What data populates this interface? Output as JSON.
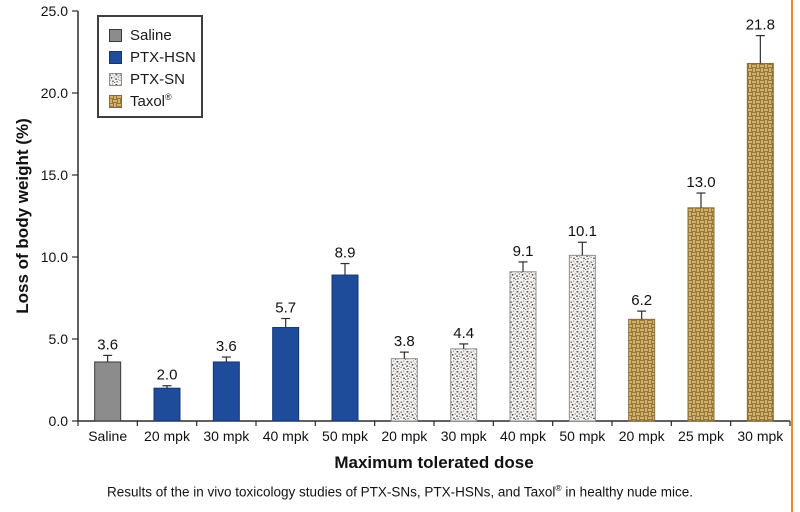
{
  "figure": {
    "background": "#FFFFFF",
    "accent_border_color": "#F18A1E",
    "axis_color": "#2B2B2B"
  },
  "chart_data": {
    "type": "bar",
    "title": "",
    "xlabel": "Maximum tolerated dose",
    "ylabel": "Loss of body weight (%)",
    "ylim": [
      0,
      25
    ],
    "grid": false,
    "legend_position": "top-left",
    "yticks": [
      {
        "value": 0,
        "label": "0.0"
      },
      {
        "value": 5,
        "label": "5.0"
      },
      {
        "value": 10,
        "label": "10.0"
      },
      {
        "value": 15,
        "label": "15.0"
      },
      {
        "value": 20,
        "label": "20.0"
      },
      {
        "value": 25,
        "label": "25.0"
      }
    ],
    "groups": {
      "Saline": {
        "fill": "#8C8C8C",
        "stroke": "#3A3A3A",
        "pattern": null
      },
      "PTX-HSN": {
        "fill": "#1F4B9B",
        "stroke": "#16366F",
        "pattern": null
      },
      "PTX-SN": {
        "fill": "#F3F2F0",
        "stroke": "#8F8F8F",
        "pattern": "pat-speckle"
      },
      "Taxol": {
        "fill": "#CBA661",
        "stroke": "#8A6C33",
        "pattern": "pat-weave"
      }
    },
    "bars": [
      {
        "category": "Saline",
        "group": "Saline",
        "value": 3.6,
        "label": "3.6",
        "error_plus": 0.4
      },
      {
        "category": "20 mpk",
        "group": "PTX-HSN",
        "value": 2.0,
        "label": "2.0",
        "error_plus": 0.15
      },
      {
        "category": "30 mpk",
        "group": "PTX-HSN",
        "value": 3.6,
        "label": "3.6",
        "error_plus": 0.3
      },
      {
        "category": "40 mpk",
        "group": "PTX-HSN",
        "value": 5.7,
        "label": "5.7",
        "error_plus": 0.55
      },
      {
        "category": "50 mpk",
        "group": "PTX-HSN",
        "value": 8.9,
        "label": "8.9",
        "error_plus": 0.7
      },
      {
        "category": "20 mpk",
        "group": "PTX-SN",
        "value": 3.8,
        "label": "3.8",
        "error_plus": 0.4
      },
      {
        "category": "30 mpk",
        "group": "PTX-SN",
        "value": 4.4,
        "label": "4.4",
        "error_plus": 0.3
      },
      {
        "category": "40 mpk",
        "group": "PTX-SN",
        "value": 9.1,
        "label": "9.1",
        "error_plus": 0.6
      },
      {
        "category": "50 mpk",
        "group": "PTX-SN",
        "value": 10.1,
        "label": "10.1",
        "error_plus": 0.8
      },
      {
        "category": "20 mpk",
        "group": "Taxol",
        "value": 6.2,
        "label": "6.2",
        "error_plus": 0.5
      },
      {
        "category": "25 mpk",
        "group": "Taxol",
        "value": 13.0,
        "label": "13.0",
        "error_plus": 0.9
      },
      {
        "category": "30 mpk",
        "group": "Taxol",
        "value": 21.8,
        "label": "21.8",
        "error_plus": 1.7
      }
    ]
  },
  "legend": {
    "items": [
      {
        "label": "Saline",
        "sup": ""
      },
      {
        "label": "PTX-HSN",
        "sup": ""
      },
      {
        "label": "PTX-SN",
        "sup": ""
      },
      {
        "label": "Taxol",
        "sup": "®"
      }
    ]
  },
  "caption": {
    "prefix": "Results of the in vivo toxicology studies of PTX-SNs, PTX-HSNs, and Taxol",
    "sup": "®",
    "suffix": " in healthy nude mice."
  }
}
